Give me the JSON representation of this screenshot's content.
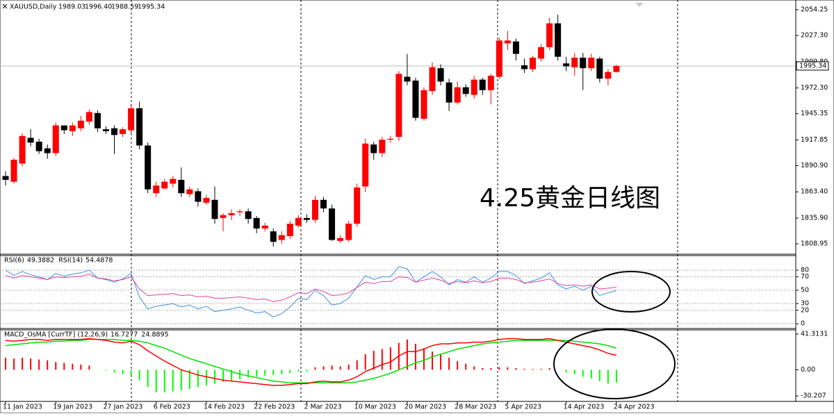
{
  "chart_data": [
    {
      "type": "candlestick",
      "title": "XAUUSD,Daily",
      "ohlc_labels": [
        "1989.03",
        "1996.40",
        "1988.59",
        "1995.34"
      ],
      "annotation": "4.25黄金日线图",
      "categories": [
        "11 Jan 2023",
        null,
        null,
        null,
        null,
        null,
        "19 Jan 2023",
        null,
        null,
        null,
        null,
        null,
        "27 Jan 2023",
        null,
        null,
        null,
        null,
        null,
        "6 Feb 2023",
        null,
        null,
        null,
        null,
        null,
        "14 Feb 2023",
        null,
        null,
        null,
        null,
        null,
        "22 Feb 2023",
        null,
        null,
        null,
        null,
        null,
        "2 Mar 2023",
        null,
        null,
        null,
        null,
        null,
        "10 Mar 2023",
        null,
        null,
        null,
        null,
        null,
        "20 Mar 2023",
        null,
        null,
        null,
        null,
        null,
        "28 Mar 2023",
        null,
        null,
        null,
        null,
        null,
        "5 Apr 2023",
        null,
        null,
        null,
        null,
        null,
        null,
        "14 Apr 2023",
        null,
        null,
        null,
        null,
        null,
        "24 Apr 2023"
      ],
      "open": [
        1880,
        1874,
        1893,
        1920,
        1916,
        1909,
        1904,
        1933,
        1927,
        1930,
        1937,
        1946,
        1929,
        1930,
        1924,
        1928,
        1951,
        1912,
        1862,
        1867,
        1872,
        1876,
        1861,
        1864,
        1852,
        1855,
        1836,
        1839,
        1842,
        1843,
        1836,
        1825,
        1822,
        1813,
        1817,
        1828,
        1836,
        1834,
        1855,
        1846,
        1812,
        1813,
        1830,
        1869,
        1913,
        1904,
        1918,
        1921,
        1984,
        1980,
        1940,
        1969,
        1993,
        1978,
        1957,
        1973,
        1965,
        1981,
        1970,
        1984,
        2019,
        2021,
        1996,
        1992,
        2003,
        2015,
        2040,
        1998,
        1994,
        2004,
        1993,
        2003,
        1982,
        1989.03
      ],
      "high": [
        1885,
        1899,
        1925,
        1929,
        1919,
        1913,
        1936,
        1933,
        1936,
        1943,
        1950,
        1949,
        1932,
        1933,
        1931,
        1955,
        1958,
        1915,
        1874,
        1877,
        1880,
        1889,
        1869,
        1867,
        1860,
        1869,
        1841,
        1845,
        1845,
        1846,
        1838,
        1831,
        1825,
        1822,
        1833,
        1839,
        1840,
        1859,
        1858,
        1850,
        1818,
        1833,
        1872,
        1919,
        1916,
        1921,
        1922,
        1990,
        2008,
        1983,
        1973,
        1999,
        1997,
        1982,
        1979,
        1976,
        1985,
        1983,
        1987,
        2025,
        2032,
        2024,
        2003,
        2006,
        2018,
        2046,
        2049,
        2005,
        2009,
        2009,
        2008,
        2005,
        1992,
        1996.4
      ],
      "low": [
        1870,
        1872,
        1890,
        1911,
        1903,
        1898,
        1901,
        1924,
        1922,
        1927,
        1934,
        1926,
        1924,
        1903,
        1921,
        1924,
        1908,
        1862,
        1858,
        1866,
        1868,
        1858,
        1858,
        1848,
        1850,
        1830,
        1822,
        1834,
        1838,
        1830,
        1820,
        1822,
        1806,
        1809,
        1814,
        1826,
        1831,
        1831,
        1842,
        1812,
        1810,
        1811,
        1827,
        1863,
        1897,
        1900,
        1915,
        1917,
        1975,
        1938,
        1938,
        1965,
        1975,
        1948,
        1955,
        1963,
        1961,
        1965,
        1955,
        1982,
        2012,
        2001,
        1988,
        1989,
        2000,
        2012,
        2001,
        1990,
        1985,
        1970,
        1990,
        1978,
        1975,
        1988.59
      ],
      "close": [
        1876,
        1897,
        1922,
        1915,
        1906,
        1904,
        1933,
        1928,
        1933,
        1938,
        1947,
        1930,
        1927,
        1923,
        1929,
        1951,
        1912,
        1866,
        1870,
        1874,
        1877,
        1862,
        1866,
        1853,
        1857,
        1835,
        1839,
        1841,
        1843,
        1835,
        1825,
        1828,
        1811,
        1818,
        1830,
        1836,
        1834,
        1855,
        1846,
        1813,
        1815,
        1830,
        1868,
        1914,
        1904,
        1918,
        1919,
        1987,
        1979,
        1941,
        1970,
        1994,
        1979,
        1957,
        1973,
        1966,
        1981,
        1970,
        1985,
        2022,
        2022,
        2008,
        1992,
        2004,
        2015,
        2040,
        2005,
        1995,
        2004,
        1993,
        2004,
        1982,
        1989,
        1995.34
      ],
      "up_color": "#ff0000",
      "down_color": "#000000",
      "ylim": [
        1798.8,
        2063.0
      ],
      "yticks": [
        2054.25,
        {
          "value": 2027.3,
          "label": "2027.30"
        },
        {
          "value": 1999.8,
          "label": "1999.80"
        },
        {
          "value": 1972.3,
          "label": "1972.30"
        },
        1945.35,
        1917.85,
        {
          "value": 1890.9,
          "label": "1890.90"
        },
        {
          "value": 1863.4,
          "label": "1863.40"
        },
        {
          "value": 1835.9,
          "label": "1835.90"
        },
        1808.95
      ]
    },
    {
      "type": "line",
      "series": [
        {
          "name": "RSI(6)",
          "color": "#3a8ee6",
          "values": [
            80,
            72,
            78,
            73,
            70,
            66,
            75,
            71,
            74,
            76,
            80,
            68,
            66,
            62,
            67,
            75,
            40,
            22,
            26,
            28,
            30,
            25,
            28,
            22,
            26,
            18,
            20,
            22,
            25,
            20,
            16,
            18,
            10,
            15,
            25,
            38,
            36,
            50,
            42,
            28,
            30,
            38,
            55,
            72,
            66,
            70,
            70,
            85,
            82,
            62,
            70,
            78,
            70,
            58,
            66,
            62,
            70,
            62,
            68,
            78,
            78,
            72,
            60,
            64,
            68,
            76,
            58,
            52,
            56,
            50,
            56,
            42,
            46,
            49.3882
          ]
        },
        {
          "name": "RSI(14)",
          "color": "#e0409a",
          "values": [
            72,
            68,
            72,
            70,
            68,
            66,
            70,
            69,
            70,
            71,
            74,
            68,
            67,
            64,
            66,
            70,
            52,
            42,
            43,
            44,
            45,
            42,
            43,
            40,
            41,
            38,
            38,
            39,
            40,
            38,
            36,
            37,
            33,
            35,
            40,
            46,
            45,
            52,
            48,
            42,
            43,
            46,
            54,
            62,
            60,
            63,
            63,
            70,
            69,
            62,
            65,
            68,
            65,
            60,
            63,
            61,
            64,
            61,
            63,
            68,
            68,
            66,
            61,
            62,
            64,
            67,
            60,
            57,
            58,
            56,
            58,
            52,
            53,
            54.4878
          ]
        }
      ],
      "ylim": [
        -6.2,
        101.8
      ],
      "yticks": [
        0,
        20,
        30,
        50,
        70,
        80
      ],
      "grid": true
    },
    {
      "type": "macd",
      "title": "MACD_OsMA [CurrTF] (12,26,9)",
      "series": [
        {
          "color": "#ff0000",
          "values": [
            34,
            33,
            34,
            35,
            35,
            34,
            35,
            35,
            35,
            35,
            36,
            35,
            34,
            32,
            31,
            33,
            29,
            22,
            16,
            10,
            5,
            0,
            -3,
            -6,
            -8,
            -10,
            -12,
            -13,
            -14,
            -15,
            -16,
            -17,
            -18,
            -18,
            -17,
            -16,
            -16,
            -14,
            -13,
            -14,
            -14,
            -12,
            -8,
            -2,
            2,
            6,
            9,
            16,
            21,
            21,
            24,
            28,
            30,
            30,
            31,
            31,
            32,
            32,
            33,
            35,
            36,
            36,
            35,
            35,
            35,
            36,
            34,
            32,
            30,
            28,
            26,
            23,
            19,
            16.7277
          ]
        },
        {
          "color": "#00e000",
          "values": [
            28,
            29,
            30,
            31,
            32,
            32,
            33,
            33,
            34,
            34,
            35,
            35,
            35,
            35,
            34,
            34,
            33,
            31,
            28,
            25,
            21,
            17,
            13,
            10,
            7,
            4,
            1,
            -2,
            -5,
            -7,
            -9,
            -11,
            -13,
            -14,
            -15,
            -15,
            -15,
            -15,
            -15,
            -15,
            -15,
            -15,
            -14,
            -12,
            -10,
            -7,
            -4,
            0,
            4,
            8,
            11,
            15,
            18,
            21,
            24,
            26,
            28,
            30,
            31,
            32,
            33,
            34,
            34,
            34,
            34,
            34,
            34,
            34,
            33,
            32,
            31,
            30,
            28,
            24.8895
          ]
        }
      ],
      "histogram": [
        14,
        13,
        14,
        13,
        12,
        11,
        9,
        8,
        7,
        6,
        5,
        0,
        -1,
        -3,
        -5,
        -6,
        -12,
        -20,
        -26,
        -26,
        -25,
        -24,
        -22,
        -20,
        -18,
        -16,
        -14,
        -13,
        -11,
        -9,
        -8,
        -7,
        -6,
        -5,
        -4,
        -2,
        -2,
        3,
        4,
        5,
        4,
        6,
        11,
        18,
        22,
        24,
        26,
        31,
        35,
        30,
        25,
        21,
        18,
        14,
        10,
        7,
        4,
        2,
        2,
        3,
        3,
        2,
        1,
        1,
        1,
        2,
        0,
        -3,
        -5,
        -8,
        -10,
        -13,
        -16,
        -15
      ],
      "positive_color": "#ff0000",
      "negative_color": "#00ff00",
      "ylim": [
        -35.7,
        46.1
      ],
      "yticks": [
        41.3131,
        {
          "value": 0,
          "label": "0.00"
        },
        -30.207
      ]
    }
  ]
}
